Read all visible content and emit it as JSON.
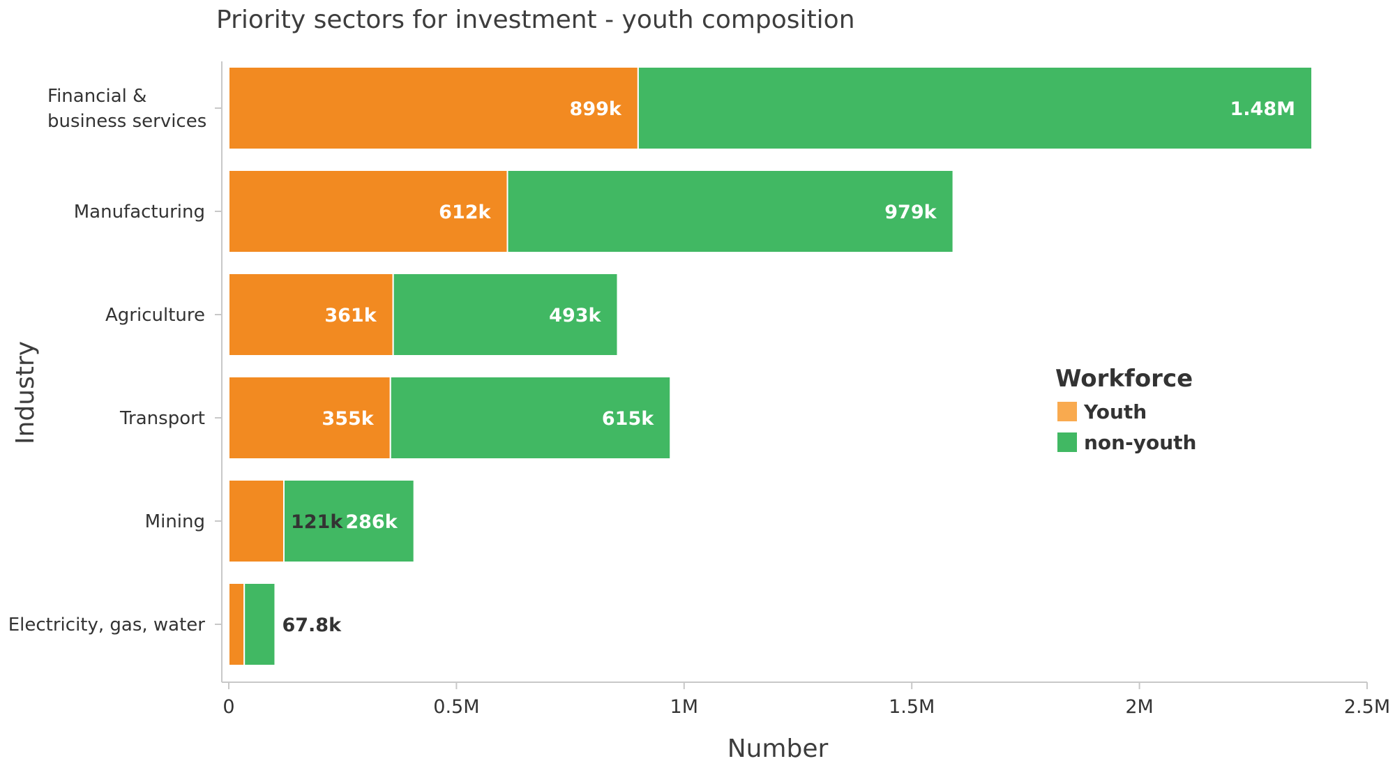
{
  "chart_data": {
    "type": "bar",
    "orientation": "horizontal",
    "stacked": true,
    "title": "Priority sectors for investment - youth composition",
    "xlabel": "Number",
    "ylabel": "Industry",
    "xlim": [
      0,
      2500000
    ],
    "x_ticks": [
      0,
      500000,
      1000000,
      1500000,
      2000000,
      2500000
    ],
    "x_tick_labels": [
      "0",
      "0.5M",
      "1M",
      "1.5M",
      "2M",
      "2.5M"
    ],
    "grid": false,
    "categories": [
      "Financial & business services",
      "Manufacturing",
      "Agriculture",
      "Transport",
      "Mining",
      "Electricity, gas, water"
    ],
    "category_lines": [
      [
        "Financial &",
        "business services"
      ],
      [
        "Manufacturing"
      ],
      [
        "Agriculture"
      ],
      [
        "Transport"
      ],
      [
        "Mining"
      ],
      [
        "Electricity, gas, water"
      ]
    ],
    "series": [
      {
        "name": "Youth",
        "color": "#f28a21",
        "legend_color": "#f9aa4f",
        "values": [
          899000,
          612000,
          361000,
          355000,
          121000,
          34000
        ],
        "labels": [
          "899k",
          "612k",
          "361k",
          "355k",
          "121k",
          ""
        ]
      },
      {
        "name": "non-youth",
        "color": "#41b863",
        "legend_color": "#41b863",
        "values": [
          1480000,
          979000,
          493000,
          615000,
          286000,
          67800
        ],
        "labels": [
          "1.48M",
          "979k",
          "493k",
          "615k",
          "286k",
          "67.8k"
        ]
      }
    ],
    "legend": {
      "title": "Workforce",
      "placement": "right"
    }
  }
}
